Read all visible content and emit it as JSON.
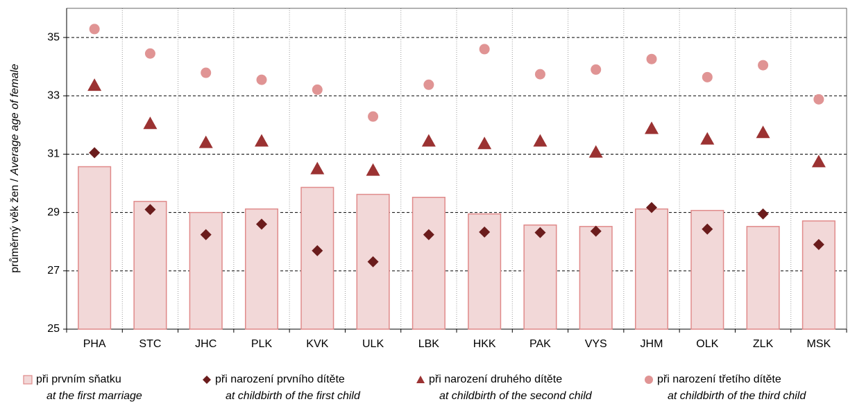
{
  "chart_data": {
    "type": "bar-scatter",
    "ylabel": [
      "průměrný věk žen /",
      "Average age of female"
    ],
    "categories": [
      "PHA",
      "STC",
      "JHC",
      "PLK",
      "KVK",
      "ULK",
      "LBK",
      "HKK",
      "PAK",
      "VYS",
      "JHM",
      "OLK",
      "ZLK",
      "MSK"
    ],
    "ylim": [
      25,
      36
    ],
    "yticks": [
      25,
      27,
      29,
      31,
      33,
      35
    ],
    "grid": true,
    "legend": "bottom",
    "series": [
      {
        "name": "při prvním sňatku",
        "name_en": "at the first marriage",
        "marker": "bar",
        "color": "#f2d8d8",
        "stroke": "#e08a8a",
        "values": [
          30.57,
          29.38,
          29.0,
          29.12,
          29.86,
          29.62,
          29.52,
          28.95,
          28.57,
          28.52,
          29.12,
          29.07,
          28.52,
          28.71
        ]
      },
      {
        "name": "při narození prvního dítěte",
        "name_en": "at childbirth of the first child",
        "marker": "diamond",
        "color": "#6b1c1c",
        "values": [
          31.05,
          29.1,
          28.24,
          28.6,
          27.69,
          27.31,
          28.24,
          28.33,
          28.31,
          28.36,
          29.17,
          28.43,
          28.95,
          27.9
        ]
      },
      {
        "name": "při narození druhého dítěte",
        "name_en": "at childbirth of the second child",
        "marker": "triangle",
        "color": "#9b3232",
        "values": [
          33.36,
          32.05,
          31.4,
          31.45,
          30.5,
          30.45,
          31.45,
          31.36,
          31.45,
          31.07,
          31.88,
          31.52,
          31.74,
          30.74
        ]
      },
      {
        "name": "při narození třetího dítěte",
        "name_en": "at childbirth of the third child",
        "marker": "circle",
        "color": "#e09494",
        "values": [
          35.29,
          34.45,
          33.79,
          33.55,
          33.21,
          32.29,
          33.38,
          34.6,
          33.74,
          33.9,
          34.26,
          33.64,
          34.05,
          32.88
        ]
      }
    ]
  }
}
